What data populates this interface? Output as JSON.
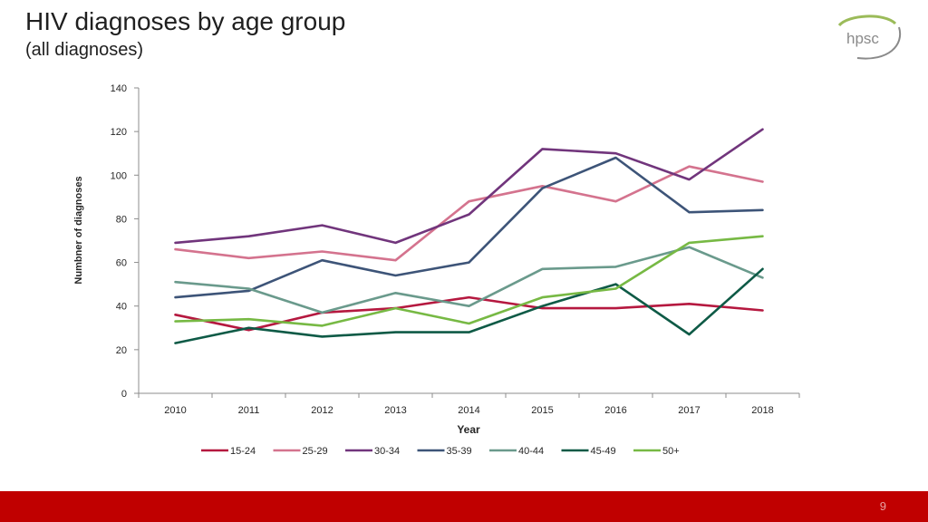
{
  "slide": {
    "title": "HIV diagnoses by age group",
    "subtitle": "(all diagnoses)",
    "logo_text": "hpsc",
    "page_number": "9"
  },
  "colors": {
    "footer": "#c00000",
    "axis": "#8c8c8c",
    "logo": "#8a8a8a",
    "logo_swoosh": "#9bbb59"
  },
  "chart_data": {
    "type": "line",
    "title": "",
    "xlabel": "Year",
    "ylabel": "Numbner of diagnoses",
    "ylim": [
      0,
      140
    ],
    "yticks": [
      "0",
      "20",
      "40",
      "60",
      "80",
      "100",
      "120",
      "140"
    ],
    "categories": [
      "2010",
      "2011",
      "2012",
      "2013",
      "2014",
      "2015",
      "2016",
      "2017",
      "2018"
    ],
    "legend_position": "bottom",
    "grid": false,
    "series": [
      {
        "name": "15-24",
        "color": "#b5183f",
        "values": [
          36,
          29,
          37,
          39,
          44,
          39,
          39,
          41,
          38
        ]
      },
      {
        "name": "25-29",
        "color": "#d4738e",
        "values": [
          66,
          62,
          65,
          61,
          88,
          95,
          88,
          104,
          97
        ]
      },
      {
        "name": "30-34",
        "color": "#71357c",
        "values": [
          69,
          72,
          77,
          69,
          82,
          112,
          110,
          98,
          121
        ]
      },
      {
        "name": "35-39",
        "color": "#3d5478",
        "values": [
          44,
          47,
          61,
          54,
          60,
          94,
          108,
          83,
          84
        ]
      },
      {
        "name": "40-44",
        "color": "#6a9a8c",
        "values": [
          51,
          48,
          37,
          46,
          40,
          57,
          58,
          67,
          53
        ]
      },
      {
        "name": "45-49",
        "color": "#0e5a46",
        "values": [
          23,
          30,
          26,
          28,
          28,
          40,
          50,
          27,
          57
        ]
      },
      {
        "name": "50+",
        "color": "#77b944",
        "values": [
          33,
          34,
          31,
          39,
          32,
          44,
          48,
          69,
          72
        ]
      }
    ]
  }
}
